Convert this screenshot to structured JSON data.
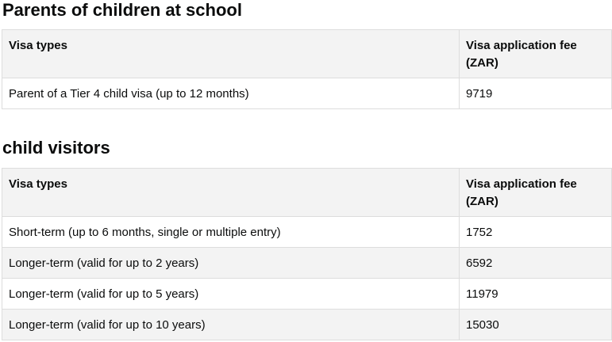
{
  "section1": {
    "title": "Parents of children at school",
    "headers": [
      "Visa types",
      "Visa application fee (ZAR)"
    ],
    "rows": [
      [
        "Parent of a Tier 4 child visa (up to 12 months)",
        "9719"
      ]
    ]
  },
  "section2": {
    "title": "child visitors",
    "headers": [
      "Visa types",
      "Visa application fee (ZAR)"
    ],
    "rows": [
      [
        "Short-term (up to 6 months, single or multiple entry)",
        "1752"
      ],
      [
        "Longer-term (valid for up to 2 years)",
        "6592"
      ],
      [
        "Longer-term (valid for up to 5 years)",
        "11979"
      ],
      [
        "Longer-term (valid for up to 10 years)",
        "15030"
      ]
    ]
  }
}
